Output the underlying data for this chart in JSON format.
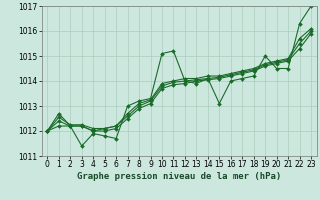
{
  "title": "Graphe pression niveau de la mer (hPa)",
  "bg_color": "#cce8de",
  "grid_color": "#aaccbb",
  "line_color": "#1a6b2a",
  "xlim": [
    -0.5,
    23.5
  ],
  "ylim": [
    1011,
    1017
  ],
  "xticks": [
    0,
    1,
    2,
    3,
    4,
    5,
    6,
    7,
    8,
    9,
    10,
    11,
    12,
    13,
    14,
    15,
    16,
    17,
    18,
    19,
    20,
    21,
    22,
    23
  ],
  "yticks": [
    1011,
    1012,
    1013,
    1014,
    1015,
    1016,
    1017
  ],
  "series": [
    [
      1012.0,
      1012.7,
      1012.2,
      1011.4,
      1011.9,
      1011.8,
      1011.7,
      1013.0,
      1013.2,
      1013.3,
      1015.1,
      1015.2,
      1014.0,
      1013.9,
      1014.1,
      1013.1,
      1014.0,
      1014.1,
      1014.2,
      1015.0,
      1014.5,
      1014.5,
      1016.3,
      1017.0
    ],
    [
      1012.0,
      1012.2,
      1012.2,
      1012.2,
      1012.0,
      1012.0,
      1012.1,
      1012.5,
      1012.9,
      1013.1,
      1013.7,
      1013.85,
      1013.9,
      1014.0,
      1014.05,
      1014.1,
      1014.2,
      1014.3,
      1014.4,
      1014.6,
      1014.7,
      1014.8,
      1015.3,
      1015.9
    ],
    [
      1012.0,
      1012.4,
      1012.2,
      1012.2,
      1012.0,
      1012.1,
      1012.2,
      1012.6,
      1013.0,
      1013.2,
      1013.8,
      1013.95,
      1014.0,
      1014.05,
      1014.1,
      1014.15,
      1014.25,
      1014.35,
      1014.45,
      1014.65,
      1014.75,
      1014.85,
      1015.5,
      1016.0
    ],
    [
      1012.0,
      1012.55,
      1012.25,
      1012.25,
      1012.1,
      1012.1,
      1012.2,
      1012.7,
      1013.1,
      1013.25,
      1013.9,
      1014.0,
      1014.1,
      1014.1,
      1014.2,
      1014.2,
      1014.3,
      1014.4,
      1014.5,
      1014.7,
      1014.8,
      1014.9,
      1015.7,
      1016.1
    ]
  ],
  "marker": "D",
  "markersize": 2.0,
  "linewidth": 0.8,
  "tick_fontsize": 5.5,
  "label_fontsize": 6.5
}
